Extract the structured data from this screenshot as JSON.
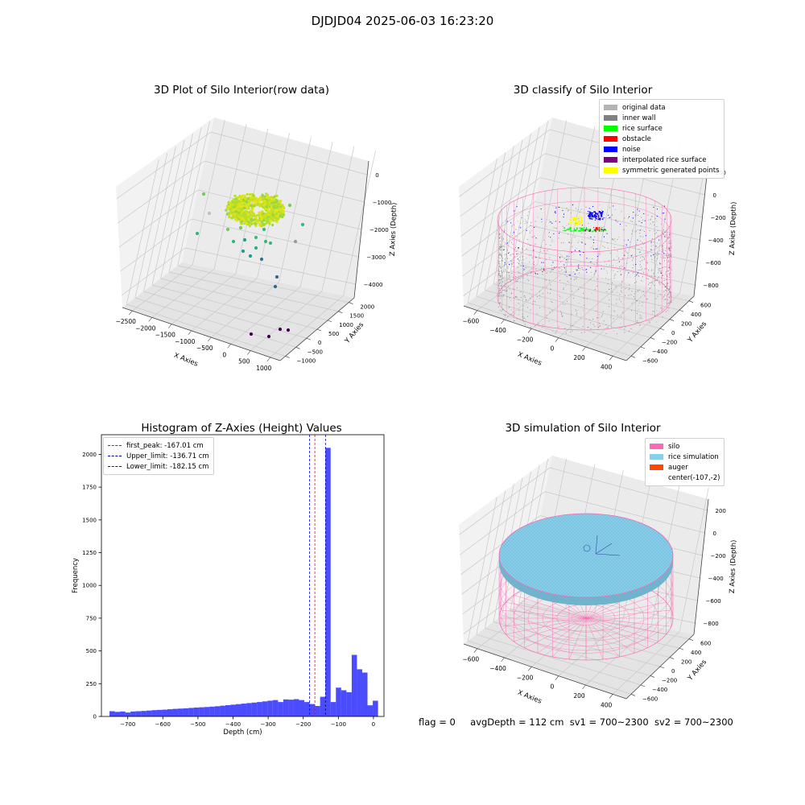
{
  "suptitle": "DJDJD04 2025-06-03 16:23:20",
  "chart_data": [
    {
      "type": "scatter",
      "title": "3D Plot of Silo Interior(row data)",
      "xlabel": "X Axies",
      "ylabel": "Y Axies",
      "zlabel": "Z Axies (Depth)",
      "x_ticks": [
        "−2500",
        "−2000",
        "−1500",
        "−1000",
        "−500",
        "0",
        "500",
        "1000"
      ],
      "y_ticks": [
        "−1000",
        "−500",
        "0",
        "500",
        "1000",
        "1500",
        "2000"
      ],
      "z_ticks": [
        "0",
        "−1000",
        "−2000",
        "−3000",
        "−4000"
      ],
      "xlim": [
        -2700,
        1300
      ],
      "ylim": [
        -1300,
        2300
      ],
      "zlim": [
        -4600,
        300
      ],
      "colormap": "viridis (by depth)",
      "points_desc": "dense ring of points near z ≈ -2000 (rice surface) with sparse outliers down to z ≈ -4600"
    },
    {
      "type": "scatter",
      "title": "3D classify of Silo Interior",
      "xlabel": "X Axies",
      "ylabel": "Y Axies",
      "zlabel": "Z Axies (Depth)",
      "x_ticks": [
        "−600",
        "−400",
        "−200",
        "0",
        "200",
        "400"
      ],
      "y_ticks": [
        "−600",
        "−400",
        "−200",
        "0",
        "200",
        "400",
        "600"
      ],
      "z_ticks": [
        "200",
        "0",
        "−200",
        "−400",
        "−600",
        "−800"
      ],
      "legend": [
        {
          "label": "original data",
          "color": "#b3b3b3"
        },
        {
          "label": "inner wall",
          "color": "#808080"
        },
        {
          "label": "rice surface",
          "color": "#00ff00"
        },
        {
          "label": "obstacle",
          "color": "#ff0000"
        },
        {
          "label": "noise",
          "color": "#0000ff"
        },
        {
          "label": "interpolated rice surface",
          "color": "#800080"
        },
        {
          "label": "symmetric generated points",
          "color": "#ffff00"
        }
      ],
      "silo_outline_color": "#ff69b4"
    },
    {
      "type": "bar",
      "title": "Histogram of Z-Axies (Height) Values",
      "xlabel": "Depth (cm)",
      "ylabel": "Frequency",
      "xlim": [
        -775,
        30
      ],
      "ylim": [
        0,
        2150
      ],
      "x_ticks": [
        -700,
        -600,
        -500,
        -400,
        -300,
        -200,
        -100,
        0
      ],
      "x_tick_labels": [
        "−700",
        "−600",
        "−500",
        "−400",
        "−300",
        "−200",
        "−100",
        "0"
      ],
      "y_ticks": [
        0,
        250,
        500,
        750,
        1000,
        1250,
        1500,
        1750,
        2000
      ],
      "bin_start": -752,
      "bin_width": 15,
      "values": [
        40,
        35,
        38,
        30,
        38,
        40,
        42,
        45,
        48,
        50,
        52,
        55,
        58,
        60,
        62,
        65,
        68,
        70,
        72,
        75,
        78,
        82,
        86,
        90,
        94,
        98,
        102,
        106,
        110,
        115,
        120,
        125,
        110,
        130,
        128,
        132,
        125,
        110,
        95,
        80,
        150,
        2050,
        110,
        220,
        200,
        185,
        470,
        360,
        335,
        85,
        120
      ],
      "bar_color": "#0000ff",
      "lines": [
        {
          "label": "first_peak: -167.01 cm",
          "x": -167.01,
          "color": "#ff0000"
        },
        {
          "label": "Upper_limit: -136.71 cm",
          "x": -136.71,
          "color": "#00008b"
        },
        {
          "label": "Lower_limit: -182.15 cm",
          "x": -182.15,
          "color": "#0000ff"
        }
      ]
    },
    {
      "type": "surface",
      "title": "3D simulation of Silo Interior",
      "xlabel": "X Axies",
      "ylabel": "Y Axies",
      "zlabel": "Z Axies (Depth)",
      "x_ticks": [
        "−600",
        "−400",
        "−200",
        "0",
        "200",
        "400"
      ],
      "y_ticks": [
        "−600",
        "−400",
        "−200",
        "0",
        "200",
        "400",
        "600"
      ],
      "z_ticks": [
        "200",
        "0",
        "−200",
        "−400",
        "−600",
        "−800"
      ],
      "legend": [
        {
          "label": "silo",
          "color": "#ff69b4"
        },
        {
          "label": "rice simulation",
          "color": "#87ceeb"
        },
        {
          "label": "auger",
          "color": "#ff4500"
        },
        {
          "label": "center(-107,-2)",
          "color": ""
        }
      ]
    }
  ],
  "footer": {
    "flag": "flag = 0",
    "avg": "avgDepth = 112 cm",
    "sv1": "sv1 = 700~2300",
    "sv2": "sv2 = 700~2300"
  }
}
